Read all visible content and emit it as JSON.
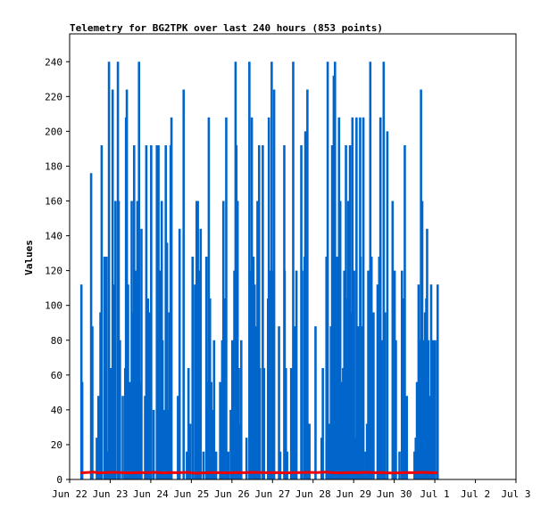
{
  "chart_data": {
    "type": "bar",
    "title": "Telemetry for BG2TPK over last 240 hours (853 points)",
    "xlabel": "",
    "ylabel": "Values",
    "ylim": [
      0,
      256
    ],
    "yticks": [
      0,
      20,
      40,
      60,
      80,
      100,
      120,
      140,
      160,
      180,
      200,
      220,
      240
    ],
    "xlim": [
      0,
      11
    ],
    "xticks": [
      {
        "pos": 0,
        "label": "Jun 22"
      },
      {
        "pos": 1,
        "label": "Jun 23"
      },
      {
        "pos": 2,
        "label": "Jun 24"
      },
      {
        "pos": 3,
        "label": "Jun 25"
      },
      {
        "pos": 4,
        "label": "Jun 26"
      },
      {
        "pos": 5,
        "label": "Jun 27"
      },
      {
        "pos": 6,
        "label": "Jun 28"
      },
      {
        "pos": 7,
        "label": "Jun 29"
      },
      {
        "pos": 8,
        "label": "Jun 30"
      },
      {
        "pos": 9,
        "label": "Jul 1"
      },
      {
        "pos": 10,
        "label": "Jul 2"
      },
      {
        "pos": 11,
        "label": "Jul 3"
      }
    ],
    "grid": false,
    "colors": {
      "blue": "#0066cc",
      "red": "#ee0000",
      "axis": "#000000"
    },
    "series": [
      {
        "type": "bar",
        "color": "#0066cc",
        "points": [
          [
            0.29,
            112
          ],
          [
            0.31,
            56
          ],
          [
            0.53,
            176
          ],
          [
            0.56,
            88
          ],
          [
            0.67,
            24
          ],
          [
            0.71,
            48
          ],
          [
            0.76,
            96
          ],
          [
            0.79,
            192
          ],
          [
            0.86,
            128
          ],
          [
            0.89,
            64
          ],
          [
            0.91,
            128
          ],
          [
            0.94,
            16
          ],
          [
            0.97,
            240
          ],
          [
            1.01,
            64
          ],
          [
            1.06,
            224
          ],
          [
            1.09,
            112
          ],
          [
            1.13,
            160
          ],
          [
            1.19,
            240
          ],
          [
            1.21,
            160
          ],
          [
            1.24,
            80
          ],
          [
            1.31,
            48
          ],
          [
            1.37,
            64
          ],
          [
            1.39,
            208
          ],
          [
            1.41,
            224
          ],
          [
            1.44,
            112
          ],
          [
            1.49,
            56
          ],
          [
            1.53,
            160
          ],
          [
            1.56,
            96
          ],
          [
            1.59,
            192
          ],
          [
            1.63,
            120
          ],
          [
            1.67,
            160
          ],
          [
            1.71,
            240
          ],
          [
            1.74,
            56
          ],
          [
            1.77,
            144
          ],
          [
            1.86,
            48
          ],
          [
            1.89,
            192
          ],
          [
            1.93,
            104
          ],
          [
            1.96,
            96
          ],
          [
            2.01,
            192
          ],
          [
            2.07,
            40
          ],
          [
            2.15,
            192
          ],
          [
            2.17,
            96
          ],
          [
            2.19,
            192
          ],
          [
            2.24,
            120
          ],
          [
            2.27,
            160
          ],
          [
            2.29,
            80
          ],
          [
            2.33,
            40
          ],
          [
            2.37,
            192
          ],
          [
            2.4,
            136
          ],
          [
            2.41,
            40
          ],
          [
            2.46,
            96
          ],
          [
            2.49,
            192
          ],
          [
            2.51,
            208
          ],
          [
            2.67,
            48
          ],
          [
            2.71,
            144
          ],
          [
            2.81,
            224
          ],
          [
            2.89,
            16
          ],
          [
            2.93,
            64
          ],
          [
            2.97,
            32
          ],
          [
            3.03,
            128
          ],
          [
            3.09,
            112
          ],
          [
            3.13,
            160
          ],
          [
            3.16,
            160
          ],
          [
            3.19,
            120
          ],
          [
            3.23,
            144
          ],
          [
            3.3,
            16
          ],
          [
            3.37,
            128
          ],
          [
            3.39,
            56
          ],
          [
            3.43,
            208
          ],
          [
            3.46,
            104
          ],
          [
            3.49,
            56
          ],
          [
            3.53,
            40
          ],
          [
            3.56,
            80
          ],
          [
            3.61,
            16
          ],
          [
            3.71,
            56
          ],
          [
            3.76,
            80
          ],
          [
            3.79,
            160
          ],
          [
            3.83,
            104
          ],
          [
            3.86,
            208
          ],
          [
            3.91,
            16
          ],
          [
            3.97,
            40
          ],
          [
            4.01,
            80
          ],
          [
            4.06,
            120
          ],
          [
            4.09,
            240
          ],
          [
            4.11,
            192
          ],
          [
            4.14,
            160
          ],
          [
            4.17,
            64
          ],
          [
            4.19,
            32
          ],
          [
            4.23,
            80
          ],
          [
            4.36,
            24
          ],
          [
            4.43,
            240
          ],
          [
            4.46,
            120
          ],
          [
            4.49,
            208
          ],
          [
            4.53,
            128
          ],
          [
            4.56,
            112
          ],
          [
            4.59,
            88
          ],
          [
            4.63,
            160
          ],
          [
            4.67,
            192
          ],
          [
            4.69,
            64
          ],
          [
            4.76,
            192
          ],
          [
            4.79,
            64
          ],
          [
            4.89,
            104
          ],
          [
            4.91,
            208
          ],
          [
            4.94,
            120
          ],
          [
            4.98,
            240
          ],
          [
            5.01,
            120
          ],
          [
            5.04,
            224
          ],
          [
            5.16,
            88
          ],
          [
            5.19,
            16
          ],
          [
            5.29,
            192
          ],
          [
            5.3,
            120
          ],
          [
            5.33,
            64
          ],
          [
            5.36,
            16
          ],
          [
            5.46,
            64
          ],
          [
            5.51,
            240
          ],
          [
            5.56,
            88
          ],
          [
            5.59,
            120
          ],
          [
            5.71,
            192
          ],
          [
            5.73,
            120
          ],
          [
            5.79,
            128
          ],
          [
            5.81,
            200
          ],
          [
            5.86,
            224
          ],
          [
            5.91,
            32
          ],
          [
            6.06,
            88
          ],
          [
            6.21,
            24
          ],
          [
            6.24,
            64
          ],
          [
            6.33,
            128
          ],
          [
            6.36,
            240
          ],
          [
            6.39,
            32
          ],
          [
            6.44,
            88
          ],
          [
            6.47,
            192
          ],
          [
            6.51,
            232
          ],
          [
            6.54,
            240
          ],
          [
            6.57,
            128
          ],
          [
            6.61,
            128
          ],
          [
            6.64,
            208
          ],
          [
            6.67,
            160
          ],
          [
            6.71,
            56
          ],
          [
            6.74,
            64
          ],
          [
            6.77,
            120
          ],
          [
            6.79,
            88
          ],
          [
            6.81,
            192
          ],
          [
            6.84,
            104
          ],
          [
            6.87,
            160
          ],
          [
            6.91,
            192
          ],
          [
            6.94,
            96
          ],
          [
            6.97,
            208
          ],
          [
            7.01,
            120
          ],
          [
            7.04,
            24
          ],
          [
            7.07,
            208
          ],
          [
            7.11,
            88
          ],
          [
            7.14,
            64
          ],
          [
            7.16,
            208
          ],
          [
            7.17,
            128
          ],
          [
            7.19,
            88
          ],
          [
            7.24,
            208
          ],
          [
            7.29,
            16
          ],
          [
            7.33,
            32
          ],
          [
            7.36,
            120
          ],
          [
            7.41,
            240
          ],
          [
            7.44,
            128
          ],
          [
            7.49,
            96
          ],
          [
            7.59,
            112
          ],
          [
            7.63,
            128
          ],
          [
            7.66,
            208
          ],
          [
            7.69,
            80
          ],
          [
            7.74,
            240
          ],
          [
            7.77,
            96
          ],
          [
            7.83,
            200
          ],
          [
            7.96,
            160
          ],
          [
            7.99,
            96
          ],
          [
            8.01,
            120
          ],
          [
            8.04,
            80
          ],
          [
            8.13,
            16
          ],
          [
            8.19,
            120
          ],
          [
            8.22,
            104
          ],
          [
            8.26,
            192
          ],
          [
            8.31,
            48
          ],
          [
            8.5,
            16
          ],
          [
            8.53,
            24
          ],
          [
            8.56,
            56
          ],
          [
            8.6,
            112
          ],
          [
            8.63,
            80
          ],
          [
            8.66,
            224
          ],
          [
            8.69,
            160
          ],
          [
            8.73,
            80
          ],
          [
            8.76,
            96
          ],
          [
            8.79,
            104
          ],
          [
            8.81,
            144
          ],
          [
            8.84,
            80
          ],
          [
            8.89,
            48
          ],
          [
            8.91,
            112
          ],
          [
            8.96,
            80
          ],
          [
            9.01,
            80
          ],
          [
            9.07,
            112
          ]
        ]
      },
      {
        "type": "line",
        "color": "#ee0000",
        "points": [
          [
            0.27,
            3.8
          ],
          [
            0.4,
            4
          ],
          [
            0.6,
            4.2
          ],
          [
            0.7,
            3.8
          ],
          [
            0.9,
            4
          ],
          [
            1.1,
            4.1
          ],
          [
            1.3,
            3.9
          ],
          [
            1.5,
            3.8
          ],
          [
            1.7,
            4
          ],
          [
            1.9,
            3.9
          ],
          [
            2.1,
            4.1
          ],
          [
            2.3,
            3.8
          ],
          [
            2.5,
            4
          ],
          [
            2.7,
            3.9
          ],
          [
            2.9,
            4.1
          ],
          [
            3.1,
            3.6
          ],
          [
            3.3,
            3.8
          ],
          [
            3.5,
            4
          ],
          [
            3.7,
            3.9
          ],
          [
            3.9,
            3.8
          ],
          [
            4.1,
            4
          ],
          [
            4.3,
            3.9
          ],
          [
            4.5,
            4.1
          ],
          [
            4.7,
            4
          ],
          [
            4.9,
            3.9
          ],
          [
            5.1,
            4
          ],
          [
            5.3,
            3.8
          ],
          [
            5.5,
            3.9
          ],
          [
            5.7,
            4
          ],
          [
            5.9,
            4.1
          ],
          [
            6.1,
            4
          ],
          [
            6.3,
            4.2
          ],
          [
            6.5,
            3.9
          ],
          [
            6.7,
            3.8
          ],
          [
            6.9,
            4
          ],
          [
            7.1,
            3.9
          ],
          [
            7.3,
            4.1
          ],
          [
            7.5,
            3.9
          ],
          [
            7.7,
            4
          ],
          [
            7.9,
            3.7
          ],
          [
            8.1,
            3.8
          ],
          [
            8.3,
            4
          ],
          [
            8.5,
            3.9
          ],
          [
            8.7,
            4.1
          ],
          [
            8.9,
            3.9
          ],
          [
            9.07,
            3.8
          ]
        ]
      }
    ]
  }
}
